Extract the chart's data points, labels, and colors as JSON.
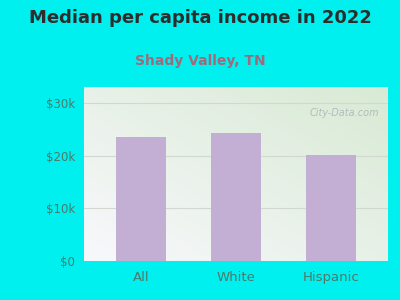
{
  "title": "Median per capita income in 2022",
  "subtitle": "Shady Valley, TN",
  "categories": [
    "All",
    "White",
    "Hispanic"
  ],
  "values": [
    23500,
    24200,
    20100
  ],
  "bar_color": "#c4afd4",
  "title_color": "#2d2d2d",
  "subtitle_color": "#9e6b7a",
  "background_color": "#00f0f0",
  "plot_bg_top_left": "#d8ead4",
  "plot_bg_bottom_right": "#f0f0f8",
  "yticks": [
    0,
    10000,
    20000,
    30000
  ],
  "ytick_labels": [
    "$0",
    "$10k",
    "$20k",
    "$30k"
  ],
  "ylim": [
    0,
    33000
  ],
  "watermark": "City-Data.com",
  "tick_color": "#4a7a6a",
  "grid_color": "#d0d8d0",
  "title_fontsize": 13,
  "subtitle_fontsize": 10,
  "tick_fontsize": 8.5,
  "xlabel_fontsize": 9.5
}
